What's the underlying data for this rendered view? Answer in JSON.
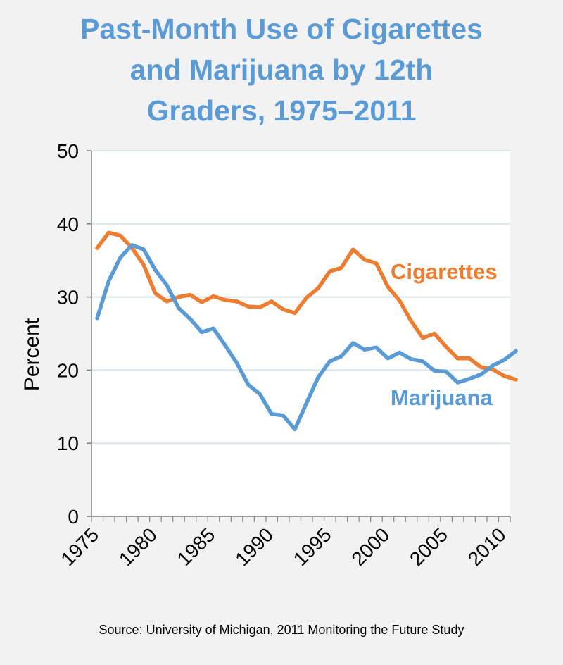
{
  "chart_data": {
    "type": "line",
    "title": [
      "Past-Month Use of Cigarettes",
      "and Marijuana by 12th",
      "Graders, 1975–2011"
    ],
    "ylabel": "Percent",
    "xlabel": "",
    "ylim": [
      0,
      50
    ],
    "yticks": [
      0,
      10,
      20,
      30,
      40,
      50
    ],
    "xlim": [
      1975,
      2011
    ],
    "xticks": [
      1975,
      1980,
      1985,
      1990,
      1995,
      2000,
      2005,
      2010
    ],
    "grid": true,
    "x": [
      1975,
      1976,
      1977,
      1978,
      1979,
      1980,
      1981,
      1982,
      1983,
      1984,
      1985,
      1986,
      1987,
      1988,
      1989,
      1990,
      1991,
      1992,
      1993,
      1994,
      1995,
      1996,
      1997,
      1998,
      1999,
      2000,
      2001,
      2002,
      2003,
      2004,
      2005,
      2006,
      2007,
      2008,
      2009,
      2010,
      2011
    ],
    "series": [
      {
        "name": "Cigarettes",
        "color": "#ed7d31",
        "values": [
          36.7,
          38.8,
          38.4,
          36.7,
          34.4,
          30.5,
          29.4,
          30.0,
          30.3,
          29.3,
          30.1,
          29.6,
          29.4,
          28.7,
          28.6,
          29.4,
          28.3,
          27.8,
          29.9,
          31.2,
          33.5,
          34.0,
          36.5,
          35.1,
          34.6,
          31.4,
          29.5,
          26.7,
          24.4,
          25.0,
          23.2,
          21.6,
          21.6,
          20.4,
          20.1,
          19.2,
          18.7
        ]
      },
      {
        "name": "Marijuana",
        "color": "#5b9bd5",
        "values": [
          27.1,
          32.2,
          35.4,
          37.1,
          36.5,
          33.7,
          31.6,
          28.5,
          27.0,
          25.2,
          25.7,
          23.4,
          21.0,
          18.0,
          16.7,
          14.0,
          13.8,
          11.9,
          15.5,
          19.0,
          21.2,
          21.9,
          23.7,
          22.8,
          23.1,
          21.6,
          22.4,
          21.5,
          21.2,
          19.9,
          19.8,
          18.3,
          18.8,
          19.4,
          20.6,
          21.4,
          22.6
        ]
      }
    ],
    "source": "Source: University of Michigan, 2011 Monitoring the Future Study"
  }
}
